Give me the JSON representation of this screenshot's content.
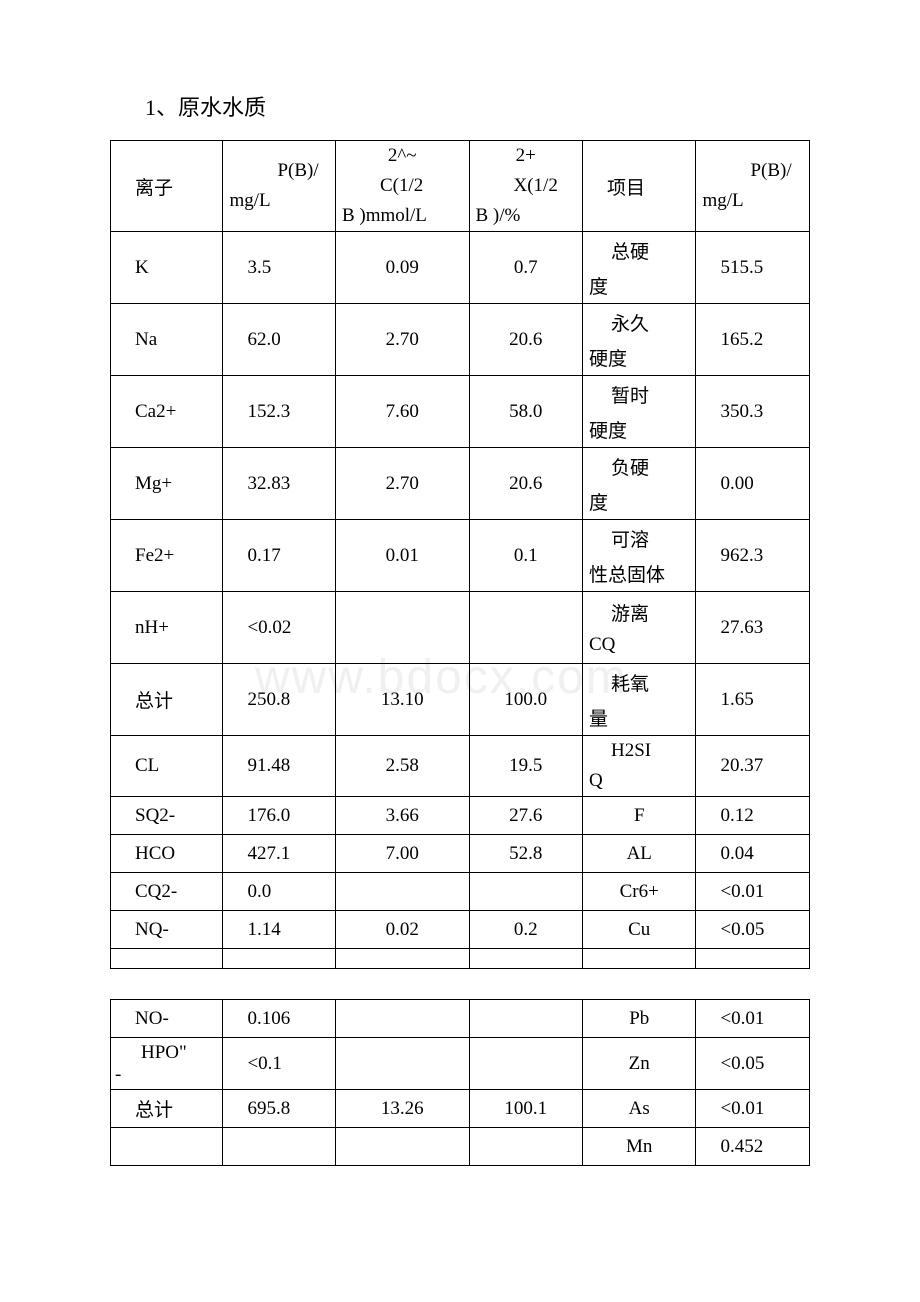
{
  "heading": "1、原水水质",
  "watermark": "www.bdocx.com",
  "header": {
    "c1": "离子",
    "c2_l1": "P(B)/",
    "c2_l2": "mg/L",
    "c3_l1": "2^~",
    "c3_l2": "C(1/2",
    "c3_l3": "B )mmol/L",
    "c4_l1": "2+",
    "c4_l2": "X(1/2",
    "c4_l3": "B )/%",
    "c5": "项目",
    "c6_l1": "P(B)/",
    "c6_l2": "mg/L"
  },
  "rows1": [
    {
      "h": "row-h",
      "c1": "K",
      "c2": "3.5",
      "c3": "0.09",
      "c4": "0.7",
      "c5_l1": "总硬",
      "c5_l2": "度",
      "c6": "515.5"
    },
    {
      "h": "row-h",
      "c1": "Na",
      "c2": "62.0",
      "c3": "2.70",
      "c4": "20.6",
      "c5_l1": "永久",
      "c5_l2": "硬度",
      "c6": "165.2"
    },
    {
      "h": "row-h",
      "c1": "Ca2+",
      "c2": "152.3",
      "c3": "7.60",
      "c4": "58.0",
      "c5_l1": "暂时",
      "c5_l2": "硬度",
      "c6": "350.3"
    },
    {
      "h": "row-h",
      "c1": "Mg+",
      "c2": "32.83",
      "c3": "2.70",
      "c4": "20.6",
      "c5_l1": "负硬",
      "c5_l2": "度",
      "c6": "0.00"
    },
    {
      "h": "row-h",
      "c1": "Fe2+",
      "c2": "0.17",
      "c3": "0.01",
      "c4": "0.1",
      "c5_l1": "可溶",
      "c5_l2": "性总固体",
      "c6": "962.3"
    },
    {
      "h": "row-h",
      "c1": "nH+",
      "c2": "<0.02",
      "c3": "",
      "c4": "",
      "c5_l1": "游离",
      "c5_l2": "CQ",
      "c6": "27.63"
    },
    {
      "h": "row-h",
      "c1": "总计",
      "c2": "250.8",
      "c3": "13.10",
      "c4": "100.0",
      "c5_l1": "耗氧",
      "c5_l2": "量",
      "c6": "1.65"
    },
    {
      "h": "row-m",
      "c1": "CL",
      "c2": "91.48",
      "c3": "2.58",
      "c4": "19.5",
      "c5_l1": "H2SI",
      "c5_l2": "Q",
      "c6": "20.37"
    },
    {
      "h": "row-s",
      "c1": "SQ2-",
      "c2": "176.0",
      "c3": "3.66",
      "c4": "27.6",
      "c5_single": "F",
      "c6": "0.12"
    },
    {
      "h": "row-s",
      "c1": "HCO",
      "c2": "427.1",
      "c3": "7.00",
      "c4": "52.8",
      "c5_single": "AL",
      "c6": "0.04"
    },
    {
      "h": "row-s",
      "c1": "CQ2-",
      "c2": "0.0",
      "c3": "",
      "c4": "",
      "c5_single": "Cr6+",
      "c6": "<0.01"
    },
    {
      "h": "row-s",
      "c1": "NQ-",
      "c2": "1.14",
      "c3": "0.02",
      "c4": "0.2",
      "c5_single": "Cu",
      "c6": "<0.05"
    }
  ],
  "rows1_empty": true,
  "rows2": [
    {
      "h": "row-s",
      "c1": "NO-",
      "c2": "0.106",
      "c3": "",
      "c4": "",
      "c5": "Pb",
      "c6": "<0.01"
    },
    {
      "h": "row-m",
      "c1_l1": "HPO\"",
      "c1_l2": "-",
      "c2": "<0.1",
      "c3": "",
      "c4": "",
      "c5": "Zn",
      "c6": "<0.05"
    },
    {
      "h": "row-s",
      "c1": "总计",
      "c2": "695.8",
      "c3": "13.26",
      "c4": "100.1",
      "c5": "As",
      "c6": "<0.01"
    },
    {
      "h": "row-s",
      "c1": "",
      "c2": "",
      "c3": "",
      "c4": "",
      "c5": "Mn",
      "c6": "0.452"
    }
  ],
  "style": {
    "background": "#ffffff",
    "border_color": "#000000",
    "text_color": "#000000",
    "watermark_color": "#f0f0f0",
    "font_family": "Times New Roman, SimSun, serif",
    "doc_width": 920,
    "doc_height": 1302,
    "heading_fontsize": 22,
    "cell_fontsize": 19
  }
}
